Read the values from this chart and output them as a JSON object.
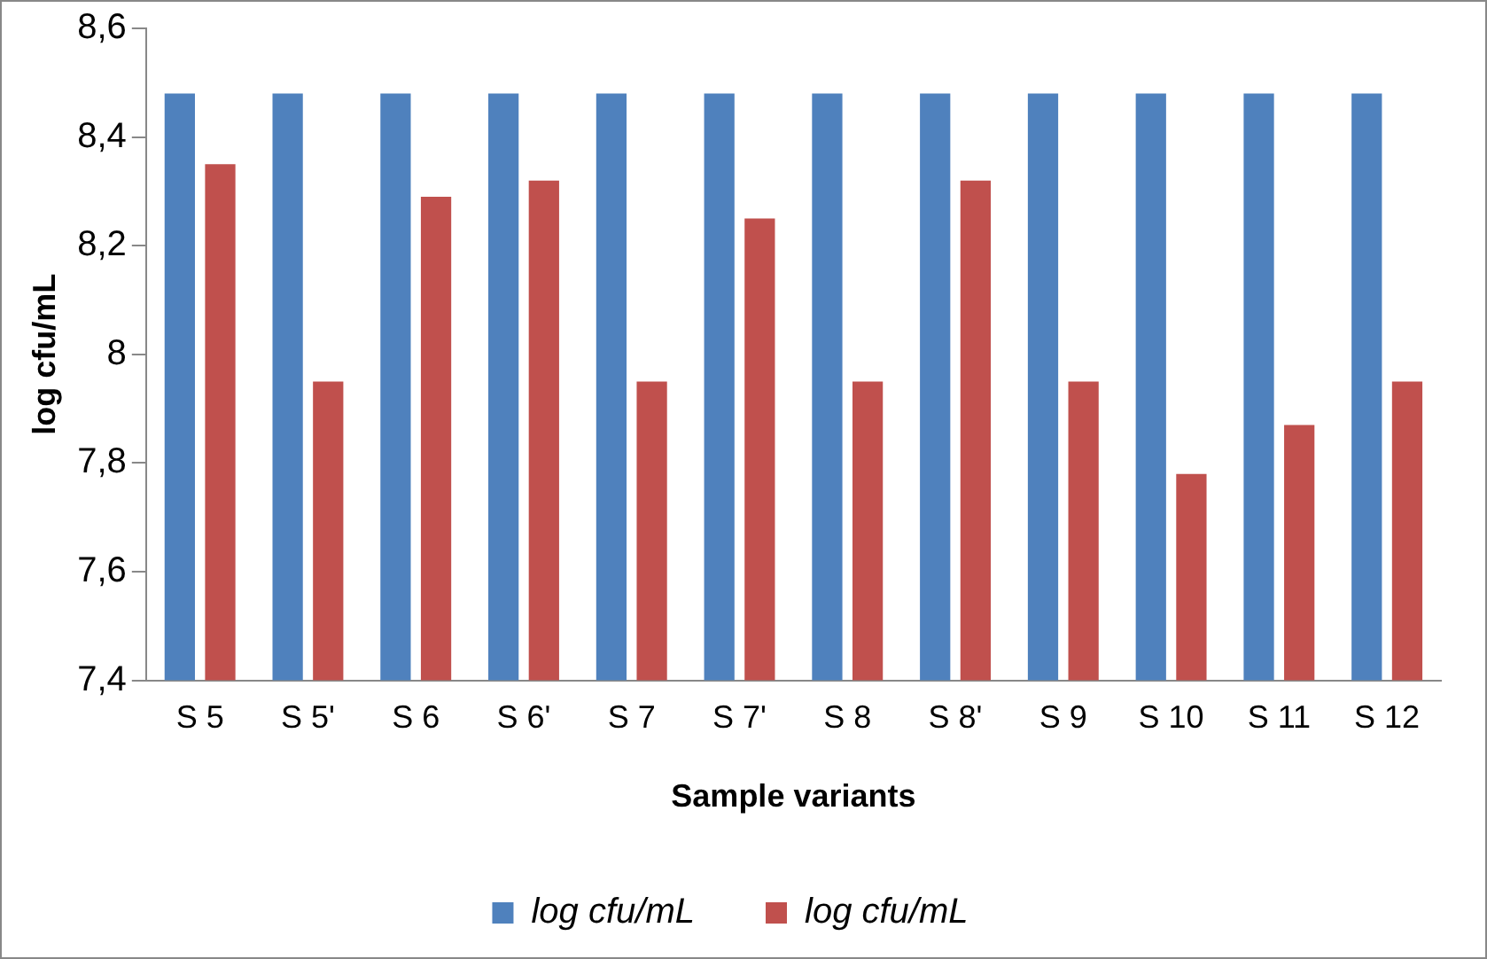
{
  "chart_data": {
    "type": "bar",
    "xlabel": "Sample variants",
    "ylabel": "log cfu/mL",
    "categories": [
      "S 5",
      "S 5'",
      "S 6",
      "S 6'",
      "S 7",
      "S 7'",
      "S 8",
      "S 8'",
      "S 9",
      "S 10",
      "S 11",
      "S 12"
    ],
    "series": [
      {
        "name": "log cfu/mL",
        "color": "#4f81bd",
        "values": [
          8.48,
          8.48,
          8.48,
          8.48,
          8.48,
          8.48,
          8.48,
          8.48,
          8.48,
          8.48,
          8.48,
          8.48
        ]
      },
      {
        "name": "log cfu/mL",
        "color": "#c0504d",
        "values": [
          8.35,
          7.95,
          8.29,
          8.32,
          7.95,
          8.25,
          7.95,
          8.32,
          7.95,
          7.78,
          7.87,
          7.95
        ]
      }
    ],
    "ylim": [
      7.4,
      8.6
    ],
    "yticks": [
      {
        "value": 7.4,
        "label": "7,4"
      },
      {
        "value": 7.6,
        "label": "7,6"
      },
      {
        "value": 7.8,
        "label": "7,8"
      },
      8,
      {
        "value": 8.2,
        "label": "8,2"
      },
      {
        "value": 8.4,
        "label": "8,4"
      },
      {
        "value": 8.6,
        "label": "8,6"
      }
    ],
    "grid": false,
    "legend": "bottom"
  }
}
